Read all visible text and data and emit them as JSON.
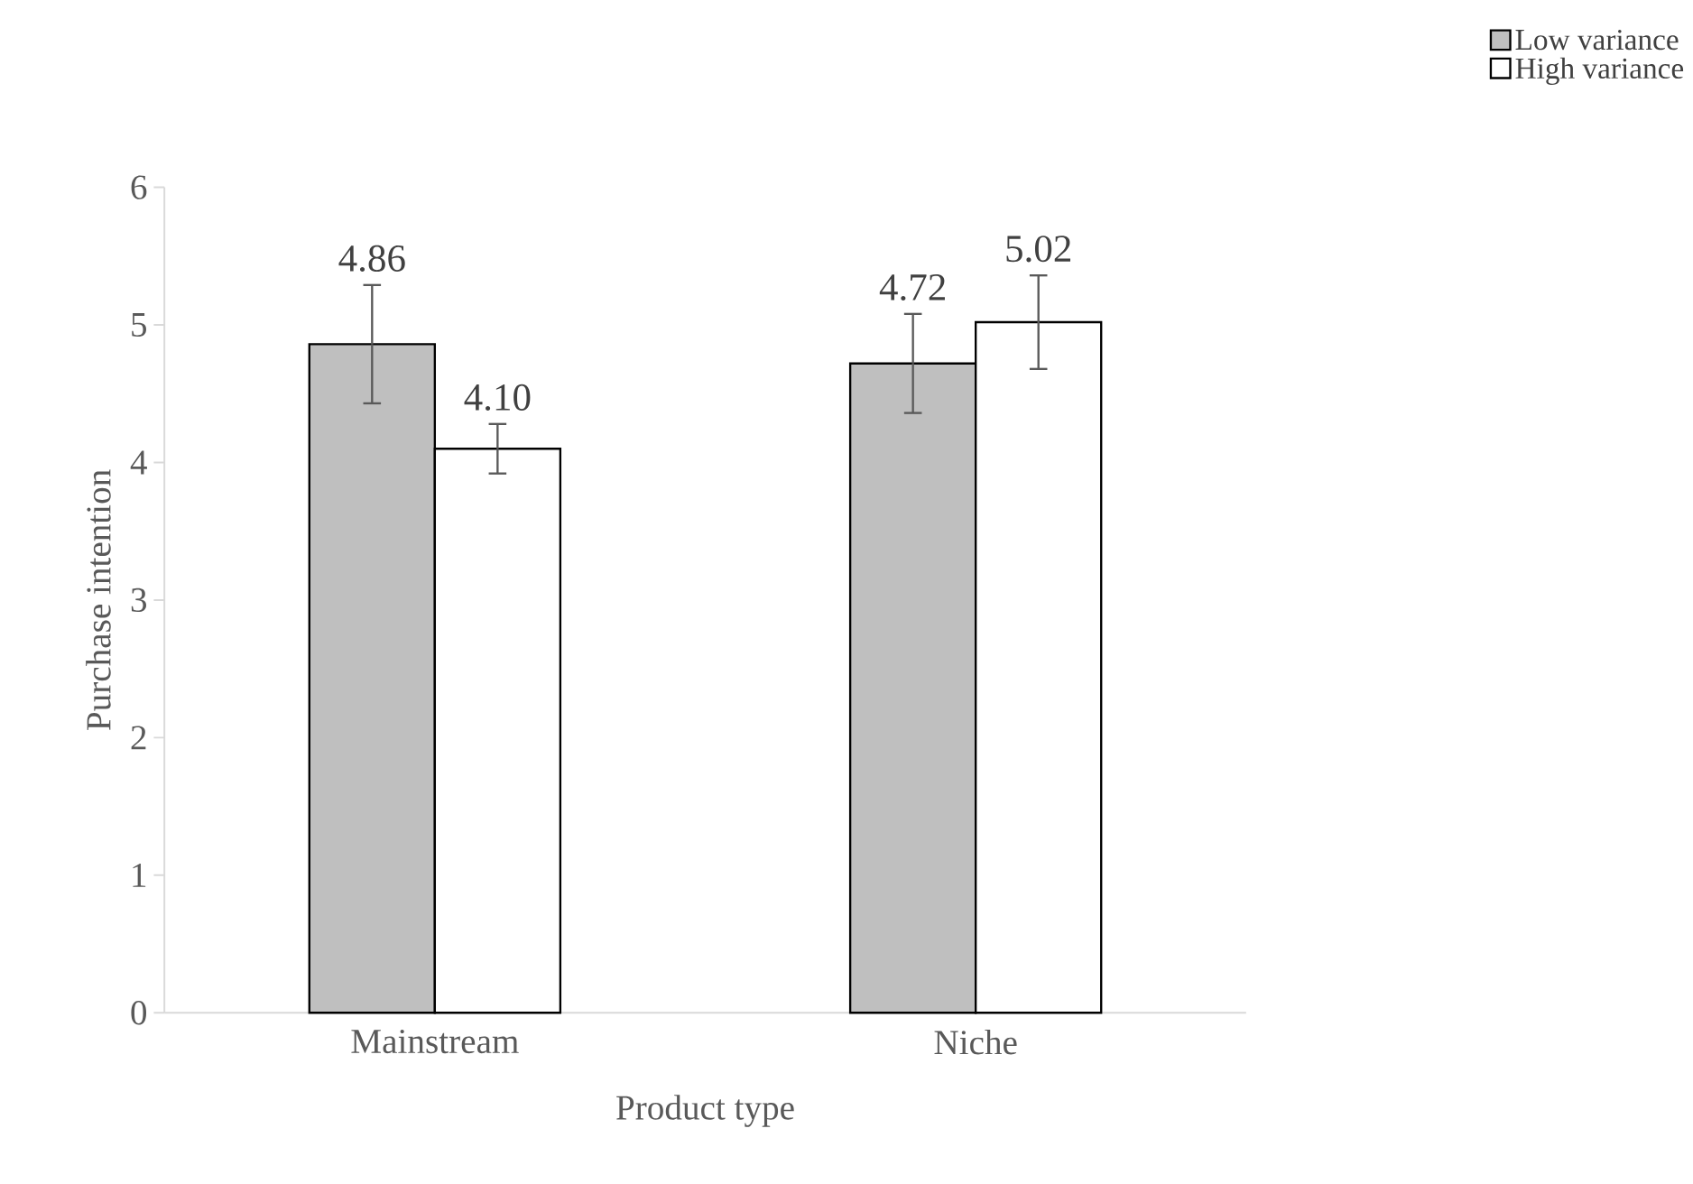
{
  "chart_data": {
    "type": "bar",
    "xlabel": "Product type",
    "ylabel": "Purchase intention",
    "categories": [
      "Mainstream",
      "Niche"
    ],
    "series": [
      {
        "name": "Low variance",
        "color": "#bfbfbf",
        "values": [
          4.86,
          4.72
        ],
        "errors": [
          0.43,
          0.36
        ],
        "value_labels": [
          "4.86",
          "4.72"
        ]
      },
      {
        "name": "High variance",
        "color": "#ffffff",
        "values": [
          4.1,
          5.02
        ],
        "errors": [
          0.18,
          0.34
        ],
        "value_labels": [
          "4.10",
          "5.02"
        ]
      }
    ],
    "ylim": [
      0,
      6
    ],
    "yticks": [
      0,
      1,
      2,
      3,
      4,
      5,
      6
    ],
    "grid": false,
    "legend": "top right"
  }
}
